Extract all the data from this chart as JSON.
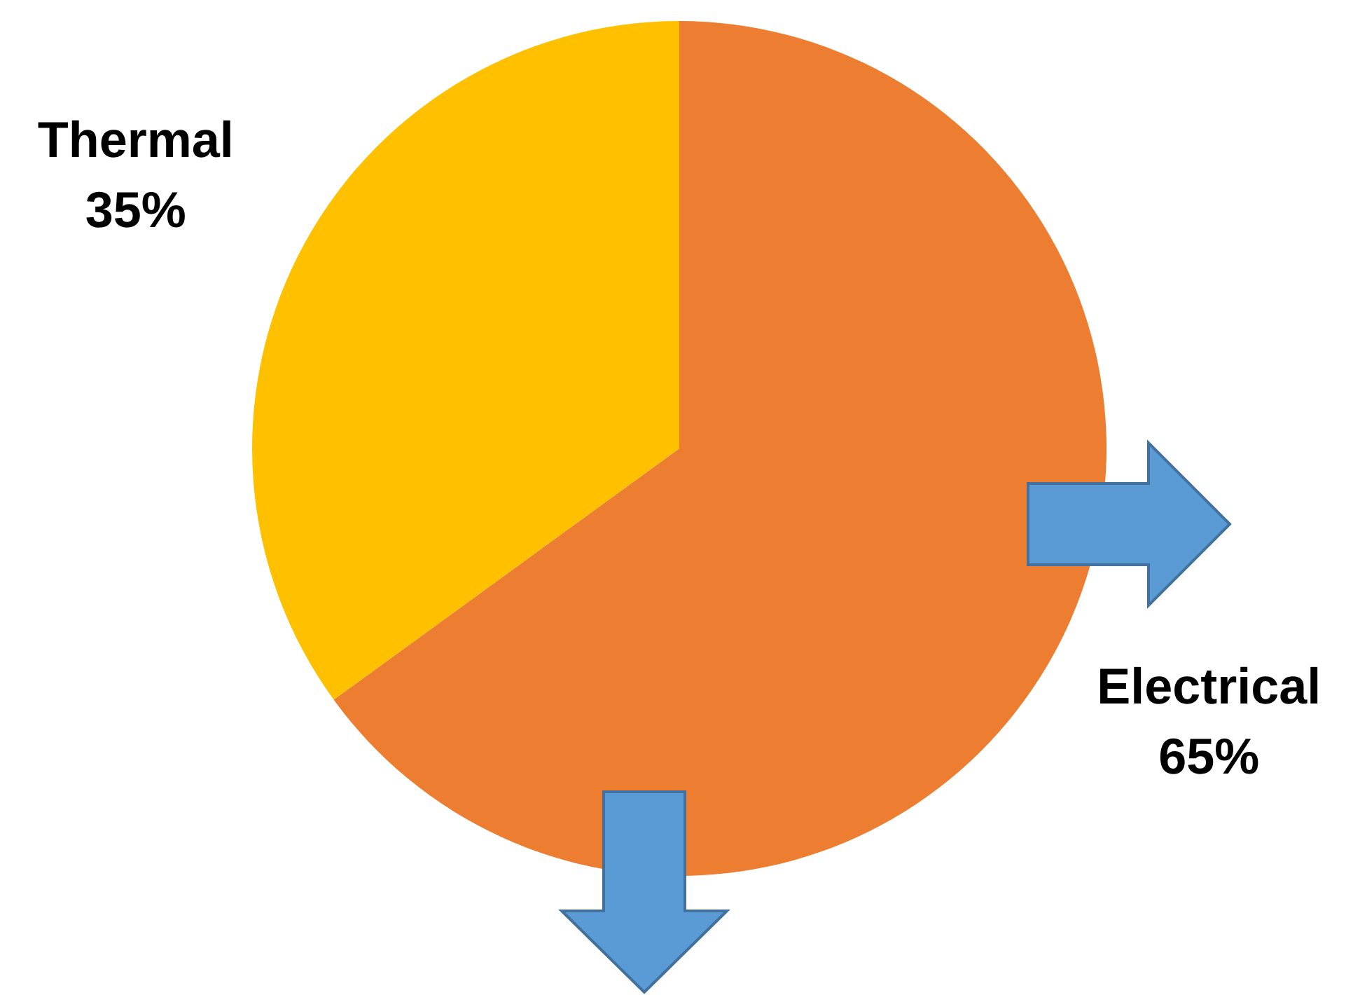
{
  "chart_data": {
    "type": "pie",
    "categories": [
      "Electrical",
      "Thermal"
    ],
    "values": [
      65,
      35
    ],
    "colors": [
      "#ed7d31",
      "#ffc000"
    ],
    "value_labels": [
      "65%",
      "35%"
    ],
    "legend": false
  }
}
